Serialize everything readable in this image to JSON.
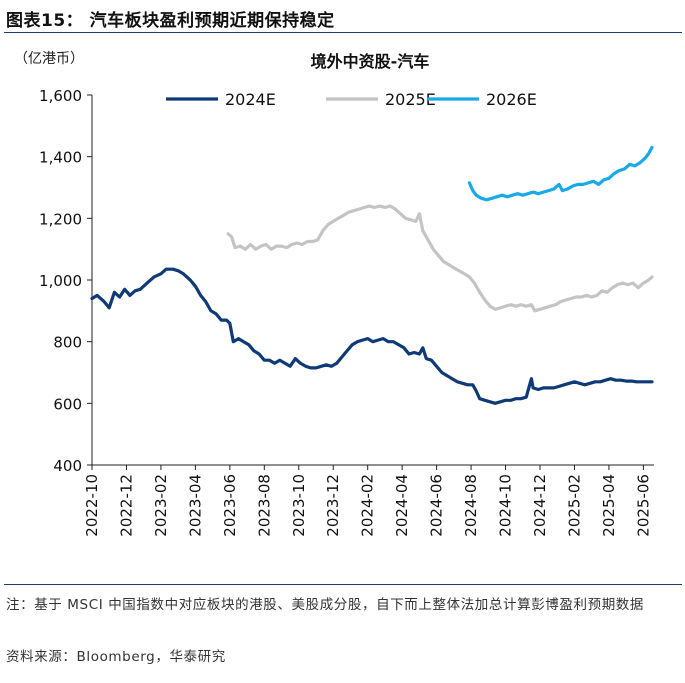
{
  "figure": {
    "title": "图表15：  汽车板块盈利预期近期保持稳定",
    "unit": "（亿港币）",
    "note": "注：基于 MSCI 中国指数中对应板块的港股、美股成分股，自下而上整体法加总计算彭博盈利预期数据",
    "source": "资料来源：Bloomberg，华泰研究"
  },
  "chart_data": {
    "type": "line",
    "title": "境外中资股-汽车",
    "xlabel": "",
    "ylabel": "亿港币",
    "ylim": [
      400,
      1600
    ],
    "yticks": [
      400,
      600,
      800,
      1000,
      1200,
      1400,
      1600
    ],
    "ytick_labels": [
      "400",
      "600",
      "800",
      "1,000",
      "1,200",
      "1,400",
      "1,600"
    ],
    "xlim": [
      0,
      32.5
    ],
    "xtick_labels": [
      "2022-10",
      "2022-12",
      "2023-02",
      "2023-04",
      "2023-06",
      "2023-08",
      "2023-10",
      "2023-12",
      "2024-02",
      "2024-04",
      "2024-06",
      "2024-08",
      "2024-10",
      "2024-12",
      "2025-02",
      "2025-04",
      "2025-06"
    ],
    "legend_position": "top",
    "series": [
      {
        "name": "2024E",
        "color": "#0f3a78",
        "points": [
          [
            0,
            940
          ],
          [
            0.3,
            950
          ],
          [
            0.7,
            930
          ],
          [
            1.0,
            910
          ],
          [
            1.3,
            960
          ],
          [
            1.6,
            945
          ],
          [
            1.9,
            970
          ],
          [
            2.2,
            950
          ],
          [
            2.5,
            965
          ],
          [
            2.8,
            970
          ],
          [
            3.2,
            990
          ],
          [
            3.6,
            1010
          ],
          [
            4.0,
            1020
          ],
          [
            4.3,
            1035
          ],
          [
            4.7,
            1035
          ],
          [
            5.0,
            1030
          ],
          [
            5.3,
            1020
          ],
          [
            5.7,
            1000
          ],
          [
            6.0,
            980
          ],
          [
            6.3,
            950
          ],
          [
            6.6,
            930
          ],
          [
            6.9,
            900
          ],
          [
            7.2,
            890
          ],
          [
            7.5,
            870
          ],
          [
            7.8,
            870
          ],
          [
            8.0,
            860
          ],
          [
            8.2,
            800
          ],
          [
            8.5,
            810
          ],
          [
            8.8,
            800
          ],
          [
            9.1,
            790
          ],
          [
            9.4,
            770
          ],
          [
            9.7,
            760
          ],
          [
            10.0,
            740
          ],
          [
            10.3,
            740
          ],
          [
            10.6,
            730
          ],
          [
            10.9,
            740
          ],
          [
            11.2,
            730
          ],
          [
            11.5,
            720
          ],
          [
            11.8,
            745
          ],
          [
            12.1,
            730
          ],
          [
            12.4,
            720
          ],
          [
            12.7,
            715
          ],
          [
            13.0,
            715
          ],
          [
            13.3,
            720
          ],
          [
            13.6,
            725
          ],
          [
            13.9,
            720
          ],
          [
            14.2,
            730
          ],
          [
            14.5,
            750
          ],
          [
            14.8,
            770
          ],
          [
            15.1,
            790
          ],
          [
            15.4,
            800
          ],
          [
            15.7,
            805
          ],
          [
            16.0,
            810
          ],
          [
            16.3,
            800
          ],
          [
            16.6,
            805
          ],
          [
            16.9,
            810
          ],
          [
            17.2,
            800
          ],
          [
            17.5,
            800
          ],
          [
            17.8,
            790
          ],
          [
            18.1,
            780
          ],
          [
            18.4,
            760
          ],
          [
            18.7,
            765
          ],
          [
            19.0,
            760
          ],
          [
            19.2,
            780
          ],
          [
            19.4,
            745
          ],
          [
            19.7,
            740
          ],
          [
            20.0,
            720
          ],
          [
            20.3,
            700
          ],
          [
            20.6,
            690
          ],
          [
            20.9,
            680
          ],
          [
            21.2,
            670
          ],
          [
            21.5,
            665
          ],
          [
            21.8,
            660
          ],
          [
            22.1,
            660
          ],
          [
            22.3,
            640
          ],
          [
            22.5,
            615
          ],
          [
            22.8,
            610
          ],
          [
            23.1,
            605
          ],
          [
            23.4,
            600
          ],
          [
            23.7,
            605
          ],
          [
            24.0,
            610
          ],
          [
            24.3,
            610
          ],
          [
            24.6,
            615
          ],
          [
            24.9,
            615
          ],
          [
            25.2,
            620
          ],
          [
            25.5,
            680
          ],
          [
            25.6,
            650
          ],
          [
            25.9,
            645
          ],
          [
            26.2,
            650
          ],
          [
            26.5,
            650
          ],
          [
            26.8,
            650
          ],
          [
            27.1,
            655
          ],
          [
            27.4,
            660
          ],
          [
            27.7,
            665
          ],
          [
            28.0,
            670
          ],
          [
            28.3,
            665
          ],
          [
            28.6,
            660
          ],
          [
            28.9,
            665
          ],
          [
            29.2,
            670
          ],
          [
            29.5,
            670
          ],
          [
            29.8,
            675
          ],
          [
            30.1,
            680
          ],
          [
            30.4,
            675
          ],
          [
            30.7,
            675
          ],
          [
            31.0,
            672
          ],
          [
            31.3,
            672
          ],
          [
            31.6,
            670
          ],
          [
            31.9,
            670
          ],
          [
            32.2,
            670
          ],
          [
            32.5,
            670
          ]
        ]
      },
      {
        "name": "2025E",
        "color": "#c4c4c4",
        "points": [
          [
            7.9,
            1150
          ],
          [
            8.1,
            1140
          ],
          [
            8.3,
            1105
          ],
          [
            8.6,
            1110
          ],
          [
            8.9,
            1100
          ],
          [
            9.2,
            1115
          ],
          [
            9.5,
            1100
          ],
          [
            9.8,
            1110
          ],
          [
            10.1,
            1115
          ],
          [
            10.4,
            1100
          ],
          [
            10.7,
            1110
          ],
          [
            11.0,
            1110
          ],
          [
            11.3,
            1105
          ],
          [
            11.6,
            1115
          ],
          [
            11.9,
            1120
          ],
          [
            12.2,
            1115
          ],
          [
            12.5,
            1125
          ],
          [
            12.8,
            1125
          ],
          [
            13.1,
            1130
          ],
          [
            13.4,
            1160
          ],
          [
            13.7,
            1180
          ],
          [
            14.0,
            1190
          ],
          [
            14.3,
            1200
          ],
          [
            14.6,
            1210
          ],
          [
            14.9,
            1220
          ],
          [
            15.2,
            1225
          ],
          [
            15.5,
            1230
          ],
          [
            15.8,
            1235
          ],
          [
            16.1,
            1240
          ],
          [
            16.4,
            1235
          ],
          [
            16.7,
            1240
          ],
          [
            17.0,
            1235
          ],
          [
            17.3,
            1240
          ],
          [
            17.6,
            1230
          ],
          [
            17.9,
            1215
          ],
          [
            18.2,
            1200
          ],
          [
            18.5,
            1195
          ],
          [
            18.8,
            1190
          ],
          [
            19.0,
            1215
          ],
          [
            19.2,
            1160
          ],
          [
            19.5,
            1130
          ],
          [
            19.8,
            1100
          ],
          [
            20.1,
            1080
          ],
          [
            20.4,
            1060
          ],
          [
            20.7,
            1050
          ],
          [
            21.0,
            1040
          ],
          [
            21.3,
            1030
          ],
          [
            21.6,
            1020
          ],
          [
            21.9,
            1010
          ],
          [
            22.2,
            990
          ],
          [
            22.5,
            960
          ],
          [
            22.8,
            935
          ],
          [
            23.1,
            915
          ],
          [
            23.4,
            905
          ],
          [
            23.7,
            910
          ],
          [
            24.0,
            915
          ],
          [
            24.3,
            920
          ],
          [
            24.6,
            915
          ],
          [
            24.9,
            920
          ],
          [
            25.2,
            915
          ],
          [
            25.5,
            920
          ],
          [
            25.7,
            900
          ],
          [
            26.0,
            905
          ],
          [
            26.3,
            910
          ],
          [
            26.6,
            915
          ],
          [
            26.9,
            920
          ],
          [
            27.2,
            930
          ],
          [
            27.5,
            935
          ],
          [
            27.8,
            940
          ],
          [
            28.1,
            945
          ],
          [
            28.4,
            945
          ],
          [
            28.7,
            950
          ],
          [
            29.0,
            945
          ],
          [
            29.3,
            950
          ],
          [
            29.6,
            965
          ],
          [
            29.9,
            960
          ],
          [
            30.2,
            975
          ],
          [
            30.5,
            985
          ],
          [
            30.8,
            990
          ],
          [
            31.1,
            985
          ],
          [
            31.4,
            990
          ],
          [
            31.7,
            975
          ],
          [
            32.0,
            990
          ],
          [
            32.3,
            1000
          ],
          [
            32.5,
            1010
          ]
        ]
      },
      {
        "name": "2026E",
        "color": "#1aa9e8",
        "points": [
          [
            21.9,
            1315
          ],
          [
            22.1,
            1290
          ],
          [
            22.3,
            1275
          ],
          [
            22.6,
            1265
          ],
          [
            22.9,
            1260
          ],
          [
            23.2,
            1265
          ],
          [
            23.5,
            1270
          ],
          [
            23.8,
            1275
          ],
          [
            24.1,
            1270
          ],
          [
            24.4,
            1275
          ],
          [
            24.7,
            1280
          ],
          [
            25.0,
            1275
          ],
          [
            25.3,
            1280
          ],
          [
            25.6,
            1285
          ],
          [
            25.9,
            1280
          ],
          [
            26.2,
            1285
          ],
          [
            26.5,
            1290
          ],
          [
            26.8,
            1295
          ],
          [
            27.1,
            1310
          ],
          [
            27.3,
            1290
          ],
          [
            27.6,
            1295
          ],
          [
            27.9,
            1305
          ],
          [
            28.2,
            1310
          ],
          [
            28.5,
            1310
          ],
          [
            28.8,
            1315
          ],
          [
            29.1,
            1320
          ],
          [
            29.4,
            1310
          ],
          [
            29.7,
            1325
          ],
          [
            30.0,
            1330
          ],
          [
            30.3,
            1345
          ],
          [
            30.6,
            1355
          ],
          [
            30.9,
            1360
          ],
          [
            31.2,
            1375
          ],
          [
            31.5,
            1370
          ],
          [
            31.8,
            1380
          ],
          [
            32.1,
            1395
          ],
          [
            32.3,
            1410
          ],
          [
            32.5,
            1430
          ]
        ]
      }
    ]
  }
}
